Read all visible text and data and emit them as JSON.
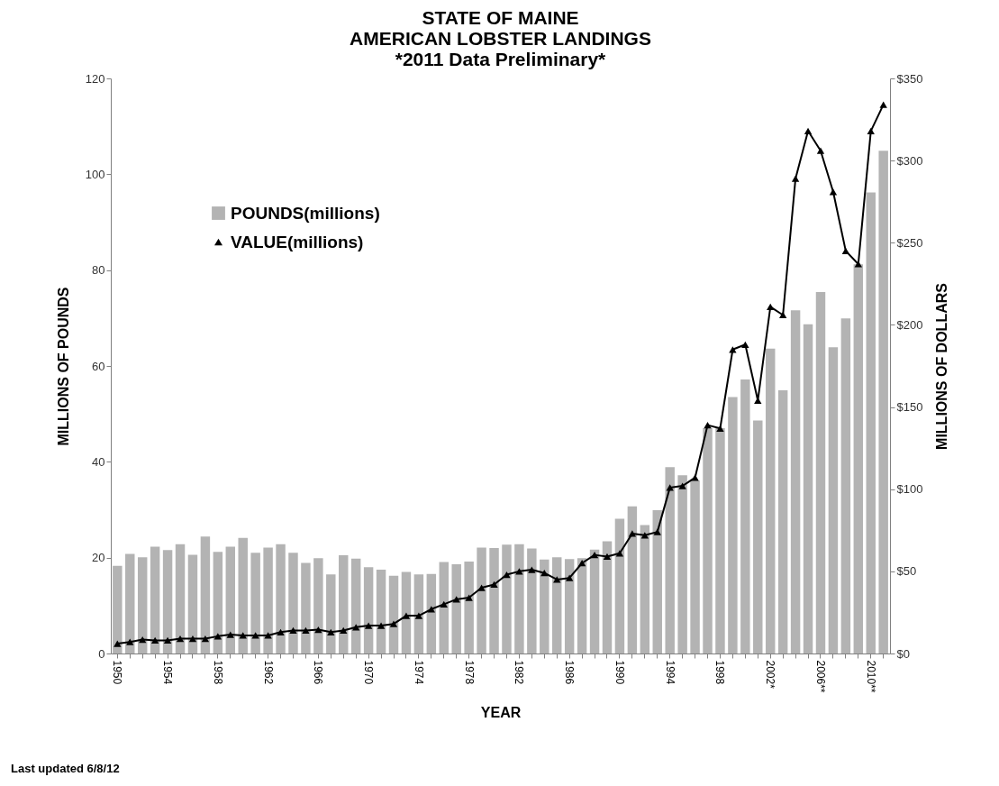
{
  "chart_data": {
    "type": "bar",
    "title": "STATE OF MAINE\nAMERICAN LOBSTER LANDINGS",
    "subtitle": "*2011 Data Preliminary*",
    "xlabel": "YEAR",
    "ylabel": "MILLIONS OF POUNDS",
    "y2label": "MILLIONS OF DOLLARS",
    "annotations": [
      "Last updated 6/8/12"
    ],
    "categories": [
      "1950",
      null,
      null,
      null,
      "1954",
      null,
      null,
      null,
      "1958",
      null,
      null,
      null,
      "1962",
      null,
      null,
      null,
      "1966",
      null,
      null,
      null,
      "1970",
      null,
      null,
      null,
      "1974",
      null,
      null,
      null,
      "1978",
      null,
      null,
      null,
      "1982",
      null,
      null,
      null,
      "1986",
      null,
      null,
      null,
      "1990",
      null,
      null,
      null,
      "1994",
      null,
      null,
      null,
      "1998",
      null,
      null,
      null,
      "2002*",
      null,
      null,
      null,
      "2006**",
      null,
      null,
      null,
      "2010**",
      null
    ],
    "series": [
      {
        "name": "POUNDS(millions)",
        "color": "#b3b3b3",
        "values": [
          18.3,
          20.8,
          20.1,
          22.3,
          21.6,
          22.8,
          20.6,
          24.4,
          21.2,
          22.3,
          24.1,
          21.0,
          22.1,
          22.8,
          21.0,
          18.9,
          19.9,
          16.5,
          20.5,
          19.8,
          18.0,
          17.5,
          16.2,
          17.0,
          16.5,
          16.6,
          19.1,
          18.6,
          19.2,
          22.1,
          22.0,
          22.7,
          22.8,
          21.9,
          19.6,
          20.1,
          19.7,
          19.9,
          21.7,
          23.4,
          28.1,
          30.7,
          26.8,
          29.9,
          38.9,
          37.2,
          36.1,
          47.0,
          47.0,
          53.5,
          57.2,
          48.6,
          63.6,
          54.9,
          71.6,
          68.7,
          75.4,
          63.9,
          69.9,
          81.2,
          96.2,
          104.9
        ]
      },
      {
        "name": "VALUE(millions)",
        "type": "line",
        "axis": "y2",
        "color": "#000000",
        "values": [
          6,
          7,
          8.5,
          8,
          8,
          9,
          9,
          9,
          10.5,
          11.5,
          11,
          11,
          11,
          13,
          14,
          14,
          14.5,
          13,
          14,
          16,
          17,
          17,
          18,
          23,
          23,
          27,
          30,
          33,
          34,
          40,
          42,
          48,
          50,
          51,
          49,
          45,
          46,
          55,
          60,
          59,
          61,
          73,
          72,
          74,
          101,
          102,
          107,
          139,
          137,
          185,
          188,
          154,
          211,
          206,
          289,
          318,
          306,
          281,
          245,
          237,
          318,
          334
        ]
      }
    ],
    "ylim": [
      0,
      120
    ],
    "yticks": [
      0,
      20,
      40,
      60,
      80,
      100,
      120
    ],
    "y2lim": [
      0,
      350
    ],
    "y2ticks": [
      {
        "value": 0,
        "label": "$0"
      },
      {
        "value": 50,
        "label": "$50"
      },
      {
        "value": 100,
        "label": "$100"
      },
      {
        "value": 150,
        "label": "$150"
      },
      {
        "value": 200,
        "label": "$200"
      },
      {
        "value": 250,
        "label": "$250"
      },
      {
        "value": 300,
        "label": "$300"
      },
      {
        "value": 350,
        "label": "$350"
      }
    ],
    "grid": false,
    "legend": "top left",
    "marker": "triangle",
    "line_style": "solid"
  }
}
